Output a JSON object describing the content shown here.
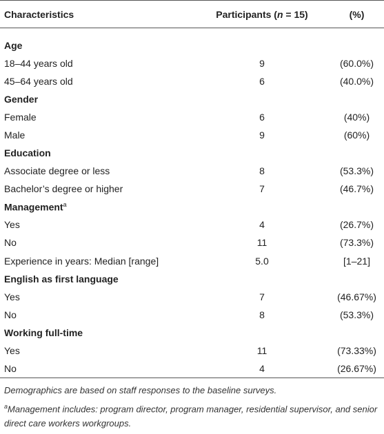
{
  "table": {
    "header": {
      "characteristics": "Characteristics",
      "participants": [
        "Participants (",
        "n",
        " = 15)"
      ],
      "percent": "(%)"
    },
    "sections": [
      {
        "title": "Age",
        "rows": [
          [
            "18–44 years old",
            "9",
            "(60.0%)"
          ],
          [
            "45–64 years old",
            "6",
            "(40.0%)"
          ]
        ]
      },
      {
        "title": "Gender",
        "rows": [
          [
            "Female",
            "6",
            "(40%)"
          ],
          [
            "Male",
            "9",
            "(60%)"
          ]
        ]
      },
      {
        "title": "Education",
        "rows": [
          [
            "Associate degree or less",
            "8",
            "(53.3%)"
          ],
          [
            "Bachelor’s degree or higher",
            "7",
            "(46.7%)"
          ]
        ]
      },
      {
        "title": "Management",
        "note": "a",
        "rows": [
          [
            "Yes",
            "4",
            "(26.7%)"
          ],
          [
            "No",
            "11",
            "(73.3%)"
          ],
          [
            "Experience in years: Median [range]",
            "5.0",
            "[1–21]"
          ]
        ]
      },
      {
        "title": "English as first language",
        "rows": [
          [
            "Yes",
            "7",
            "(46.67%)"
          ],
          [
            "No",
            "8",
            "(53.3%)"
          ]
        ]
      },
      {
        "title": "Working full-time",
        "rows": [
          [
            "Yes",
            "11",
            "(73.33%)"
          ],
          [
            "No",
            "4",
            "(26.67%)"
          ]
        ]
      }
    ]
  },
  "footnotes": [
    {
      "text": "Demographics are based on staff responses to the baseline surveys."
    },
    {
      "mark": "a",
      "text": "Management includes: program director, program manager, residential supervisor, and senior direct care workers workgroups."
    }
  ]
}
